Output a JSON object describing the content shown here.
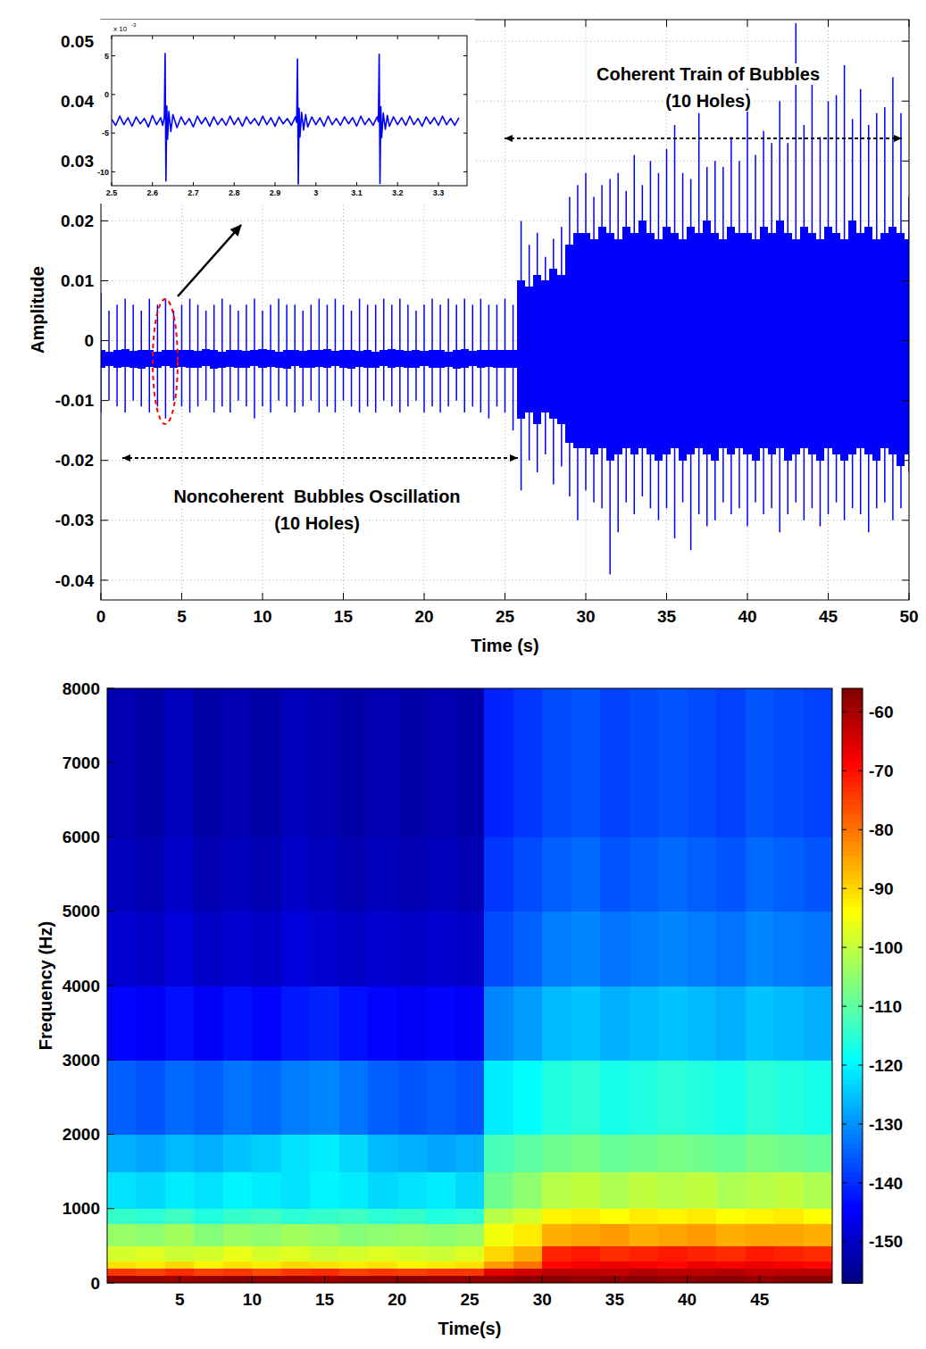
{
  "chart_data": [
    {
      "type": "line",
      "xlabel": "Time (s)",
      "ylabel": "Amplitude",
      "color": "#0000ff",
      "grid": true,
      "xlim": [
        0,
        50
      ],
      "ylim": [
        -0.0433,
        0.0536
      ],
      "xticks": [
        0,
        5,
        10,
        15,
        20,
        25,
        30,
        35,
        40,
        45,
        50
      ],
      "yticks": [
        -0.04,
        -0.03,
        -0.02,
        -0.01,
        0,
        0.01,
        0.02,
        0.03,
        0.04,
        0.05
      ],
      "x": [
        0,
        0.5,
        1,
        1.5,
        2,
        2.5,
        3,
        3.5,
        4,
        4.5,
        5,
        5.5,
        6,
        6.5,
        7,
        7.5,
        8,
        8.5,
        9,
        9.5,
        10,
        10.5,
        11,
        11.5,
        12,
        12.5,
        13,
        13.5,
        14,
        14.5,
        15,
        15.5,
        16,
        16.5,
        17,
        17.5,
        18,
        18.5,
        19,
        19.5,
        20,
        20.5,
        21,
        21.5,
        22,
        22.5,
        23,
        23.5,
        24,
        24.5,
        25,
        25.5,
        26,
        26.5,
        27,
        27.5,
        28,
        28.5,
        29,
        29.5,
        30,
        30.5,
        31,
        31.5,
        32,
        32.5,
        33,
        33.5,
        34,
        34.5,
        35,
        35.5,
        36,
        36.5,
        37,
        37.5,
        38,
        38.5,
        39,
        39.5,
        40,
        40.5,
        41,
        41.5,
        42,
        42.5,
        43,
        43.5,
        44,
        44.5,
        45,
        45.5,
        46,
        46.5,
        47,
        47.5,
        48,
        48.5,
        49,
        49.5,
        50
      ],
      "upper": [
        0.008,
        0.005,
        0.006,
        0.007,
        0.006,
        0.005,
        0.007,
        0.006,
        0.007,
        0.005,
        0.006,
        0.007,
        0.006,
        0.005,
        0.006,
        0.007,
        0.006,
        0.005,
        0.006,
        0.007,
        0.005,
        0.006,
        0.007,
        0.006,
        0.006,
        0.005,
        0.006,
        0.007,
        0.006,
        0.007,
        0.006,
        0.005,
        0.007,
        0.006,
        0.006,
        0.007,
        0.006,
        0.007,
        0.006,
        0.005,
        0.006,
        0.007,
        0.006,
        0.007,
        0.006,
        0.007,
        0.006,
        0.007,
        0.006,
        0.006,
        0.007,
        0.006,
        0.02,
        0.016,
        0.018,
        0.014,
        0.017,
        0.019,
        0.024,
        0.026,
        0.028,
        0.024,
        0.026,
        0.027,
        0.028,
        0.025,
        0.031,
        0.026,
        0.03,
        0.028,
        0.032,
        0.036,
        0.028,
        0.027,
        0.038,
        0.029,
        0.03,
        0.029,
        0.034,
        0.03,
        0.042,
        0.031,
        0.035,
        0.033,
        0.04,
        0.033,
        0.053,
        0.036,
        0.045,
        0.034,
        0.04,
        0.041,
        0.046,
        0.037,
        0.042,
        0.036,
        0.038,
        0.039,
        0.044,
        0.038,
        0.024
      ],
      "lower": [
        -0.012,
        -0.01,
        -0.011,
        -0.012,
        -0.01,
        -0.011,
        -0.012,
        -0.011,
        -0.013,
        -0.01,
        -0.011,
        -0.012,
        -0.011,
        -0.01,
        -0.012,
        -0.011,
        -0.012,
        -0.01,
        -0.011,
        -0.013,
        -0.011,
        -0.012,
        -0.01,
        -0.011,
        -0.012,
        -0.011,
        -0.01,
        -0.012,
        -0.011,
        -0.012,
        -0.01,
        -0.011,
        -0.012,
        -0.011,
        -0.012,
        -0.01,
        -0.011,
        -0.012,
        -0.011,
        -0.01,
        -0.012,
        -0.011,
        -0.012,
        -0.011,
        -0.01,
        -0.012,
        -0.011,
        -0.012,
        -0.013,
        -0.011,
        -0.012,
        -0.015,
        -0.025,
        -0.02,
        -0.022,
        -0.019,
        -0.024,
        -0.021,
        -0.026,
        -0.03,
        -0.025,
        -0.027,
        -0.028,
        -0.039,
        -0.032,
        -0.027,
        -0.029,
        -0.026,
        -0.028,
        -0.03,
        -0.028,
        -0.033,
        -0.027,
        -0.035,
        -0.029,
        -0.031,
        -0.03,
        -0.027,
        -0.029,
        -0.028,
        -0.031,
        -0.027,
        -0.029,
        -0.028,
        -0.032,
        -0.029,
        -0.027,
        -0.03,
        -0.028,
        -0.031,
        -0.029,
        -0.027,
        -0.03,
        -0.028,
        -0.029,
        -0.032,
        -0.028,
        -0.027,
        -0.03,
        -0.028,
        -0.022
      ],
      "floor_upper": [
        -0.0015,
        -0.0018,
        -0.0016,
        -0.0014,
        -0.0017,
        -0.0015,
        -0.0016,
        -0.0018,
        -0.0015,
        -0.0016,
        -0.0016,
        -0.0015,
        -0.0017,
        -0.0014,
        -0.0016,
        -0.0018,
        -0.0015,
        -0.0016,
        -0.0017,
        -0.0015,
        -0.0014,
        -0.0016,
        -0.0018,
        -0.0015,
        -0.0016,
        -0.0017,
        -0.0015,
        -0.0016,
        -0.0014,
        -0.0017,
        -0.0016,
        -0.0015,
        -0.0017,
        -0.0016,
        -0.0018,
        -0.0015,
        -0.0014,
        -0.0016,
        -0.0017,
        -0.0015,
        -0.0017,
        -0.0016,
        -0.0015,
        -0.0018,
        -0.0016,
        -0.0014,
        -0.0017,
        -0.0015,
        -0.0016,
        -0.0015,
        -0.0016,
        -0.0015,
        0.01,
        0.009,
        0.011,
        0.01,
        0.012,
        0.011,
        0.016,
        0.018,
        0.018,
        0.017,
        0.019,
        0.018,
        0.017,
        0.019,
        0.018,
        0.02,
        0.018,
        0.017,
        0.019,
        0.018,
        0.017,
        0.019,
        0.018,
        0.02,
        0.018,
        0.017,
        0.019,
        0.018,
        0.018,
        0.017,
        0.019,
        0.018,
        0.02,
        0.018,
        0.017,
        0.019,
        0.018,
        0.017,
        0.019,
        0.018,
        0.017,
        0.02,
        0.018,
        0.019,
        0.017,
        0.018,
        0.019,
        0.018,
        0.017
      ],
      "floor_lower": [
        -0.0045,
        -0.0043,
        -0.0046,
        -0.0044,
        -0.0045,
        -0.0047,
        -0.0044,
        -0.0045,
        -0.0043,
        -0.0046,
        -0.0044,
        -0.0046,
        -0.0045,
        -0.0043,
        -0.0047,
        -0.0045,
        -0.0044,
        -0.0046,
        -0.0045,
        -0.0043,
        -0.0046,
        -0.0044,
        -0.0045,
        -0.0047,
        -0.0043,
        -0.0045,
        -0.0046,
        -0.0044,
        -0.0045,
        -0.0043,
        -0.0045,
        -0.0047,
        -0.0044,
        -0.0045,
        -0.0046,
        -0.0043,
        -0.0045,
        -0.0044,
        -0.0046,
        -0.0045,
        -0.0043,
        -0.0045,
        -0.0046,
        -0.0044,
        -0.0047,
        -0.0045,
        -0.0043,
        -0.0046,
        -0.0044,
        -0.0045,
        -0.0045,
        -0.0046,
        -0.013,
        -0.012,
        -0.014,
        -0.012,
        -0.013,
        -0.014,
        -0.017,
        -0.018,
        -0.018,
        -0.019,
        -0.018,
        -0.02,
        -0.019,
        -0.018,
        -0.019,
        -0.018,
        -0.019,
        -0.02,
        -0.019,
        -0.018,
        -0.02,
        -0.019,
        -0.018,
        -0.019,
        -0.02,
        -0.018,
        -0.019,
        -0.018,
        -0.019,
        -0.02,
        -0.018,
        -0.019,
        -0.018,
        -0.02,
        -0.019,
        -0.018,
        -0.019,
        -0.02,
        -0.018,
        -0.019,
        -0.02,
        -0.019,
        -0.018,
        -0.019,
        -0.02,
        -0.018,
        -0.019,
        -0.021,
        -0.019
      ],
      "annotations": [
        {
          "lines": [
            "Coherent Train of Bubbles",
            "(10 Holes)"
          ]
        },
        {
          "lines": [
            "Noncoherent  Bubbles Oscillation",
            "(10 Holes)"
          ]
        }
      ]
    },
    {
      "type": "line",
      "color": "#0000ff",
      "grid": false,
      "xlim": [
        2.5,
        3.37
      ],
      "ylim": [
        -11.8,
        7.6
      ],
      "xticks": [
        2.5,
        2.6,
        2.7,
        2.8,
        2.9,
        3,
        3.1,
        3.2,
        3.3
      ],
      "yticks": [
        5,
        0,
        -5,
        -10
      ],
      "y_scale_label": {
        "base": "x 10",
        "power": "-3"
      },
      "x": [
        2.5,
        2.51,
        2.52,
        2.53,
        2.54,
        2.55,
        2.56,
        2.57,
        2.58,
        2.59,
        2.6,
        2.61,
        2.62,
        2.625,
        2.629,
        2.631,
        2.633,
        2.635,
        2.637,
        2.64,
        2.645,
        2.65,
        2.66,
        2.67,
        2.68,
        2.69,
        2.7,
        2.71,
        2.72,
        2.73,
        2.74,
        2.75,
        2.76,
        2.77,
        2.78,
        2.79,
        2.8,
        2.81,
        2.82,
        2.83,
        2.84,
        2.85,
        2.86,
        2.87,
        2.88,
        2.89,
        2.9,
        2.91,
        2.92,
        2.93,
        2.94,
        2.95,
        2.953,
        2.955,
        2.957,
        2.959,
        2.961,
        2.965,
        2.97,
        2.975,
        2.98,
        2.99,
        3,
        3.01,
        3.02,
        3.03,
        3.04,
        3.05,
        3.06,
        3.07,
        3.08,
        3.09,
        3.1,
        3.11,
        3.12,
        3.13,
        3.14,
        3.15,
        3.153,
        3.155,
        3.157,
        3.159,
        3.161,
        3.165,
        3.17,
        3.175,
        3.18,
        3.19,
        3.2,
        3.21,
        3.22,
        3.23,
        3.24,
        3.25,
        3.26,
        3.27,
        3.28,
        3.29,
        3.3,
        3.31,
        3.32,
        3.33,
        3.34,
        3.35
      ],
      "values": [
        -3.2,
        -4.0,
        -2.8,
        -3.9,
        -3.0,
        -4.1,
        -2.9,
        -3.8,
        -3.1,
        -4.2,
        -2.7,
        -3.9,
        -3.0,
        -4.0,
        -3.0,
        5.3,
        -11.2,
        -1.5,
        -5.8,
        -2.2,
        -4.8,
        -2.6,
        -4.3,
        -2.9,
        -3.9,
        -3.1,
        -4.2,
        -2.8,
        -3.8,
        -3.0,
        -4.1,
        -2.9,
        -3.9,
        -3.1,
        -4.0,
        -2.8,
        -3.9,
        -3.0,
        -4.1,
        -2.9,
        -3.8,
        -3.1,
        -4.0,
        -2.8,
        -3.9,
        -3.0,
        -4.1,
        -2.9,
        -3.8,
        -3.1,
        -4.0,
        -2.9,
        -3.6,
        4.6,
        -11.6,
        -1.8,
        -5.5,
        -2.3,
        -4.6,
        -2.6,
        -4.2,
        -2.9,
        -3.9,
        -3.0,
        -4.1,
        -2.8,
        -3.9,
        -3.1,
        -4.0,
        -2.9,
        -3.8,
        -3.0,
        -4.1,
        -2.8,
        -3.9,
        -3.1,
        -4.0,
        -2.9,
        -3.5,
        5.2,
        -11.5,
        -1.6,
        -5.6,
        -2.4,
        -4.5,
        -2.7,
        -4.1,
        -2.9,
        -3.9,
        -3.0,
        -4.0,
        -2.8,
        -3.9,
        -3.1,
        -4.1,
        -2.9,
        -3.8,
        -3.0,
        -4.0,
        -2.8,
        -3.9,
        -3.1,
        -4.0,
        -3.0
      ]
    },
    {
      "type": "heatmap",
      "xlabel": "Time(s)",
      "ylabel": "Frequency (Hz)",
      "xlim": [
        0,
        50
      ],
      "ylim": [
        0,
        8000
      ],
      "xticks": [
        5,
        10,
        15,
        20,
        25,
        30,
        35,
        40,
        45
      ],
      "yticks": [
        0,
        1000,
        2000,
        3000,
        4000,
        5000,
        6000,
        7000,
        8000
      ],
      "x_edges": [
        0,
        2,
        4,
        6,
        8,
        10,
        12,
        14,
        16,
        18,
        20,
        22,
        24,
        26,
        28,
        30,
        32,
        34,
        36,
        38,
        40,
        42,
        44,
        46,
        48,
        50
      ],
      "y_edges": [
        0,
        100,
        200,
        300,
        500,
        800,
        1000,
        1500,
        2000,
        3000,
        4000,
        5000,
        6000,
        8000
      ],
      "cells": [
        [
          -58,
          -58,
          -59,
          -58,
          -57,
          -58,
          -58,
          -59,
          -58,
          -58,
          -57,
          -58,
          -58,
          -58,
          -57,
          -57,
          -58,
          -57,
          -57,
          -58,
          -57,
          -57,
          -58,
          -57,
          -57
        ],
        [
          -74,
          -75,
          -73,
          -75,
          -74,
          -76,
          -74,
          -73,
          -75,
          -74,
          -75,
          -74,
          -74,
          -66,
          -64,
          -62,
          -62,
          -63,
          -61,
          -62,
          -62,
          -61,
          -63,
          -62,
          -62
        ],
        [
          -91,
          -92,
          -90,
          -93,
          -91,
          -92,
          -90,
          -91,
          -92,
          -91,
          -93,
          -92,
          -91,
          -84,
          -80,
          -69,
          -68,
          -67,
          -68,
          -69,
          -67,
          -68,
          -67,
          -68,
          -69
        ],
        [
          -98,
          -97,
          -99,
          -98,
          -96,
          -98,
          -97,
          -99,
          -98,
          -97,
          -98,
          -99,
          -97,
          -90,
          -86,
          -72,
          -71,
          -73,
          -72,
          -71,
          -72,
          -73,
          -71,
          -72,
          -73
        ],
        [
          -104,
          -105,
          -103,
          -106,
          -104,
          -105,
          -103,
          -104,
          -106,
          -105,
          -104,
          -105,
          -104,
          -95,
          -92,
          -86,
          -85,
          -84,
          -86,
          -85,
          -84,
          -86,
          -85,
          -85,
          -86
        ],
        [
          -114,
          -115,
          -113,
          -116,
          -114,
          -113,
          -115,
          -114,
          -113,
          -115,
          -114,
          -116,
          -115,
          -101,
          -98,
          -93,
          -92,
          -94,
          -92,
          -93,
          -92,
          -94,
          -93,
          -92,
          -94
        ],
        [
          -122,
          -123,
          -121,
          -122,
          -120,
          -121,
          -122,
          -120,
          -121,
          -123,
          -122,
          -121,
          -123,
          -108,
          -105,
          -101,
          -100,
          -102,
          -100,
          -101,
          -100,
          -102,
          -101,
          -100,
          -102
        ],
        [
          -127,
          -128,
          -126,
          -127,
          -125,
          -124,
          -122,
          -121,
          -123,
          -126,
          -127,
          -128,
          -127,
          -112,
          -110,
          -108,
          -107,
          -109,
          -108,
          -107,
          -108,
          -109,
          -107,
          -108,
          -109
        ],
        [
          -135,
          -136,
          -134,
          -135,
          -133,
          -134,
          -132,
          -131,
          -133,
          -135,
          -136,
          -135,
          -136,
          -121,
          -119,
          -116,
          -115,
          -117,
          -116,
          -115,
          -116,
          -117,
          -115,
          -116,
          -117
        ],
        [
          -144,
          -145,
          -143,
          -145,
          -143,
          -144,
          -142,
          -141,
          -143,
          -144,
          -145,
          -144,
          -145,
          -131,
          -129,
          -126,
          -125,
          -127,
          -126,
          -125,
          -126,
          -127,
          -125,
          -126,
          -127
        ],
        [
          -149,
          -150,
          -148,
          -150,
          -149,
          -150,
          -148,
          -149,
          -150,
          -149,
          -150,
          -149,
          -150,
          -137,
          -135,
          -132,
          -131,
          -133,
          -132,
          -131,
          -132,
          -133,
          -131,
          -132,
          -133
        ],
        [
          -151,
          -152,
          -150,
          -152,
          -151,
          -152,
          -150,
          -151,
          -152,
          -151,
          -152,
          -151,
          -152,
          -139,
          -137,
          -135,
          -134,
          -136,
          -135,
          -134,
          -135,
          -136,
          -134,
          -135,
          -136
        ],
        [
          -152,
          -153,
          -151,
          -153,
          -152,
          -153,
          -151,
          -152,
          -153,
          -152,
          -153,
          -152,
          -153,
          -141,
          -139,
          -137,
          -136,
          -138,
          -137,
          -136,
          -137,
          -138,
          -136,
          -137,
          -138
        ]
      ],
      "colorbar": {
        "range": [
          -157,
          -56
        ],
        "ticks": [
          -60,
          -70,
          -80,
          -90,
          -100,
          -110,
          -120,
          -130,
          -140,
          -150
        ]
      }
    }
  ]
}
